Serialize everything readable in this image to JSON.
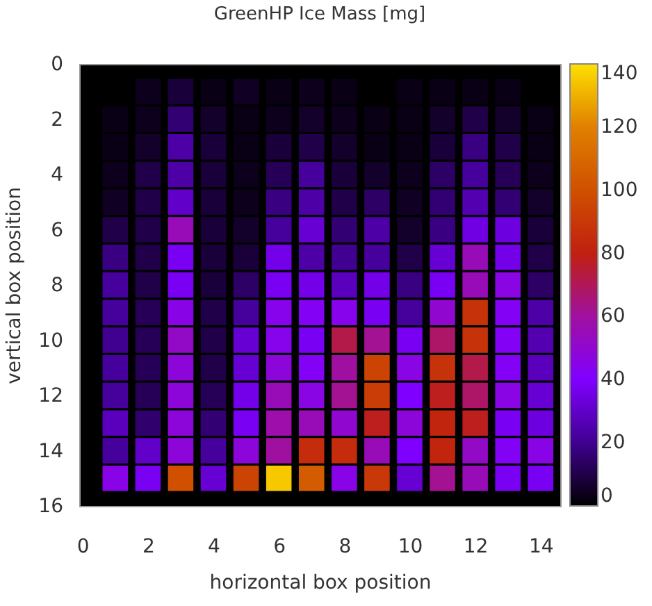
{
  "chart_data": {
    "type": "heatmap",
    "title": "GreenHP Ice Mass [mg]",
    "xlabel": "horizontal box position",
    "ylabel": "vertical box position",
    "x": [
      1,
      2,
      3,
      4,
      5,
      6,
      7,
      8,
      9,
      10,
      11,
      12,
      13,
      14
    ],
    "y": [
      1,
      2,
      3,
      4,
      5,
      6,
      7,
      8,
      9,
      10,
      11,
      12,
      13,
      14,
      15
    ],
    "xlim": [
      -0.1,
      14.6
    ],
    "xticks": [
      0,
      2,
      4,
      6,
      8,
      10,
      12,
      14
    ],
    "ylim": [
      16,
      0
    ],
    "yticks": [
      0,
      2,
      4,
      6,
      8,
      10,
      12,
      14,
      16
    ],
    "clim": [
      0,
      140
    ],
    "cticks": [
      0,
      20,
      40,
      60,
      80,
      100,
      120,
      140
    ],
    "cells": [
      [
        null,
        4,
        8,
        3,
        5,
        3,
        4,
        3,
        null,
        3,
        3,
        3,
        3,
        null
      ],
      [
        3,
        4,
        16,
        6,
        3,
        4,
        6,
        4,
        3,
        3,
        6,
        10,
        6,
        3
      ],
      [
        3,
        6,
        24,
        8,
        3,
        8,
        10,
        6,
        3,
        3,
        8,
        18,
        10,
        3
      ],
      [
        4,
        10,
        24,
        8,
        4,
        12,
        22,
        8,
        6,
        4,
        14,
        22,
        12,
        4
      ],
      [
        5,
        10,
        30,
        8,
        4,
        18,
        24,
        10,
        14,
        5,
        16,
        26,
        16,
        6
      ],
      [
        10,
        10,
        55,
        8,
        6,
        22,
        32,
        16,
        24,
        6,
        18,
        35,
        34,
        8
      ],
      [
        18,
        10,
        38,
        8,
        8,
        36,
        24,
        20,
        22,
        10,
        32,
        55,
        36,
        10
      ],
      [
        22,
        10,
        38,
        8,
        14,
        38,
        36,
        28,
        36,
        18,
        38,
        55,
        46,
        14
      ],
      [
        22,
        12,
        45,
        10,
        22,
        44,
        42,
        44,
        38,
        22,
        50,
        88,
        42,
        24
      ],
      [
        20,
        12,
        52,
        10,
        32,
        44,
        38,
        72,
        62,
        38,
        68,
        88,
        42,
        26
      ],
      [
        22,
        12,
        48,
        10,
        32,
        48,
        42,
        60,
        95,
        46,
        88,
        72,
        42,
        28
      ],
      [
        22,
        12,
        48,
        12,
        36,
        55,
        46,
        62,
        92,
        40,
        78,
        68,
        46,
        32
      ],
      [
        28,
        15,
        48,
        16,
        38,
        58,
        55,
        50,
        78,
        48,
        82,
        78,
        38,
        34
      ],
      [
        22,
        30,
        48,
        22,
        48,
        60,
        85,
        85,
        55,
        40,
        82,
        52,
        42,
        45
      ],
      [
        45,
        38,
        100,
        32,
        95,
        135,
        105,
        45,
        90,
        32,
        62,
        55,
        38,
        38
      ]
    ]
  }
}
